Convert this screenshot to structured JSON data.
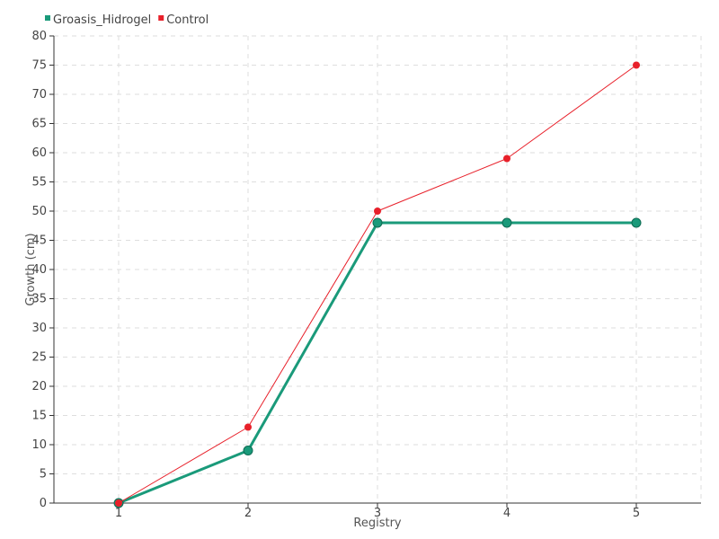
{
  "chart_data": {
    "type": "line",
    "categories": [
      "1",
      "2",
      "3",
      "4",
      "5"
    ],
    "series": [
      {
        "name": "Groasis_Hidrogel",
        "values": [
          0,
          9,
          48,
          48,
          48
        ],
        "color": "#1a9a7a"
      },
      {
        "name": "Control",
        "values": [
          0,
          13,
          50,
          59,
          75
        ],
        "color": "#e8202a"
      }
    ],
    "xlabel": "Registry",
    "ylabel": "Growth (cm)",
    "ylim": [
      0,
      80
    ],
    "yticks": [
      "0",
      "5",
      "10",
      "15",
      "20",
      "25",
      "30",
      "35",
      "40",
      "45",
      "50",
      "55",
      "60",
      "65",
      "70",
      "75",
      "80"
    ],
    "grid": true,
    "legend_position": "top-left"
  }
}
